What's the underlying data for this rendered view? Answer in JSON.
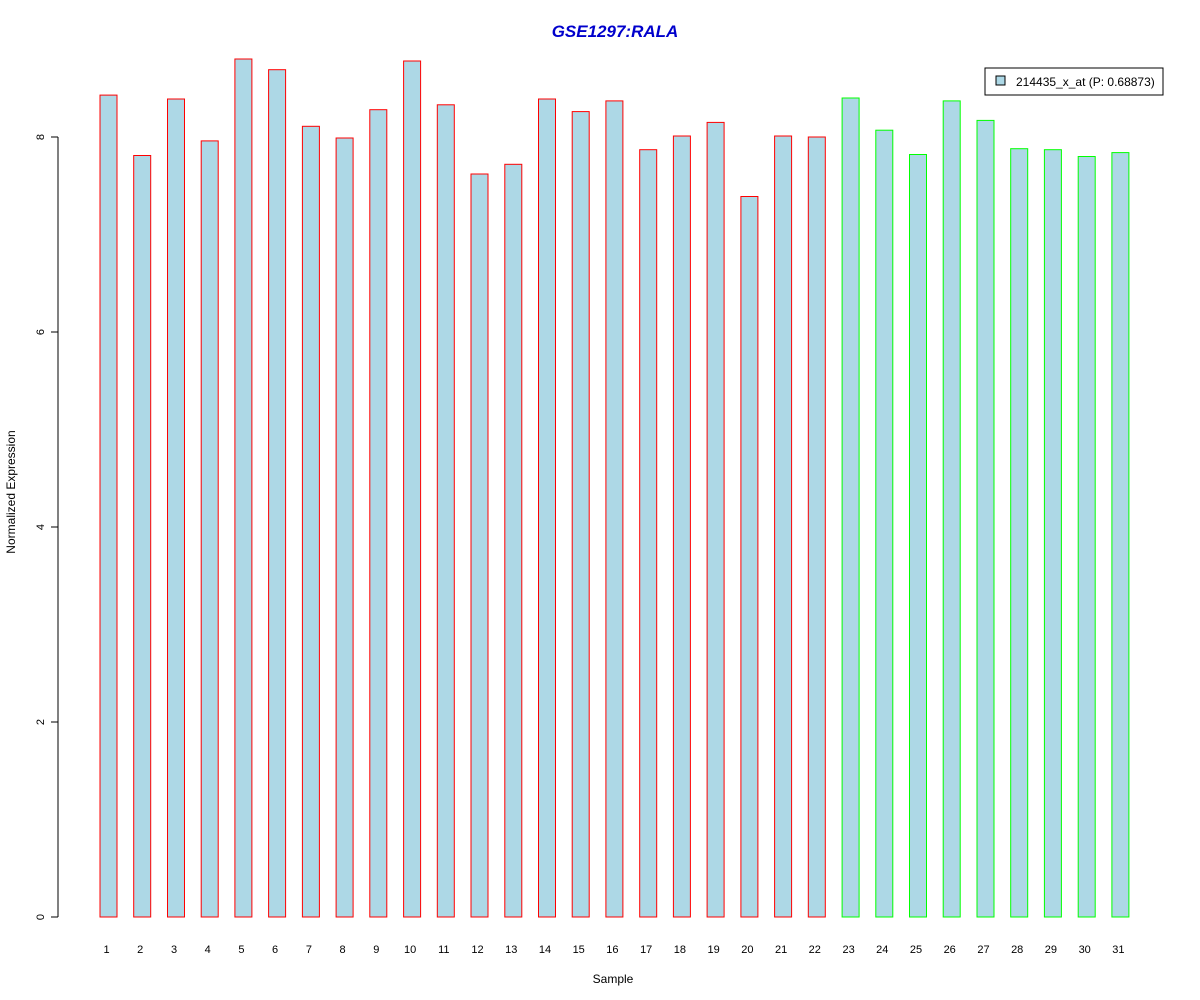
{
  "chart_data": {
    "type": "bar",
    "title": "GSE1297:RALA",
    "xlabel": "Sample",
    "ylabel": "Normalized Expression",
    "ylim": [
      0,
      8.8
    ],
    "yticks": [
      0,
      2,
      4,
      6,
      8
    ],
    "categories": [
      "1",
      "2",
      "3",
      "4",
      "5",
      "6",
      "7",
      "8",
      "9",
      "10",
      "11",
      "12",
      "13",
      "14",
      "15",
      "16",
      "17",
      "18",
      "19",
      "20",
      "21",
      "22",
      "23",
      "24",
      "25",
      "26",
      "27",
      "28",
      "29",
      "30",
      "31"
    ],
    "series": [
      {
        "name": "214435_x_at (P: 0.68873)",
        "values": [
          8.43,
          7.81,
          8.39,
          7.96,
          8.8,
          8.69,
          8.11,
          7.99,
          8.28,
          8.78,
          8.33,
          7.62,
          7.72,
          8.39,
          8.26,
          8.37,
          7.87,
          8.01,
          8.15,
          7.39,
          8.01,
          8.0,
          8.4,
          8.07,
          7.82,
          8.37,
          8.17,
          7.88,
          7.87,
          7.8,
          7.84
        ],
        "fill": "#add8e6"
      }
    ],
    "bar_border_colors": [
      "#ff0000",
      "#ff0000",
      "#ff0000",
      "#ff0000",
      "#ff0000",
      "#ff0000",
      "#ff0000",
      "#ff0000",
      "#ff0000",
      "#ff0000",
      "#ff0000",
      "#ff0000",
      "#ff0000",
      "#ff0000",
      "#ff0000",
      "#ff0000",
      "#ff0000",
      "#ff0000",
      "#ff0000",
      "#ff0000",
      "#ff0000",
      "#ff0000",
      "#00ff00",
      "#00ff00",
      "#00ff00",
      "#00ff00",
      "#00ff00",
      "#00ff00",
      "#00ff00",
      "#00ff00",
      "#00ff00"
    ],
    "title_color": "#0000cc",
    "legend": {
      "placement": "top-right",
      "label": "214435_x_at (P: 0.68873)"
    },
    "grid": false
  }
}
